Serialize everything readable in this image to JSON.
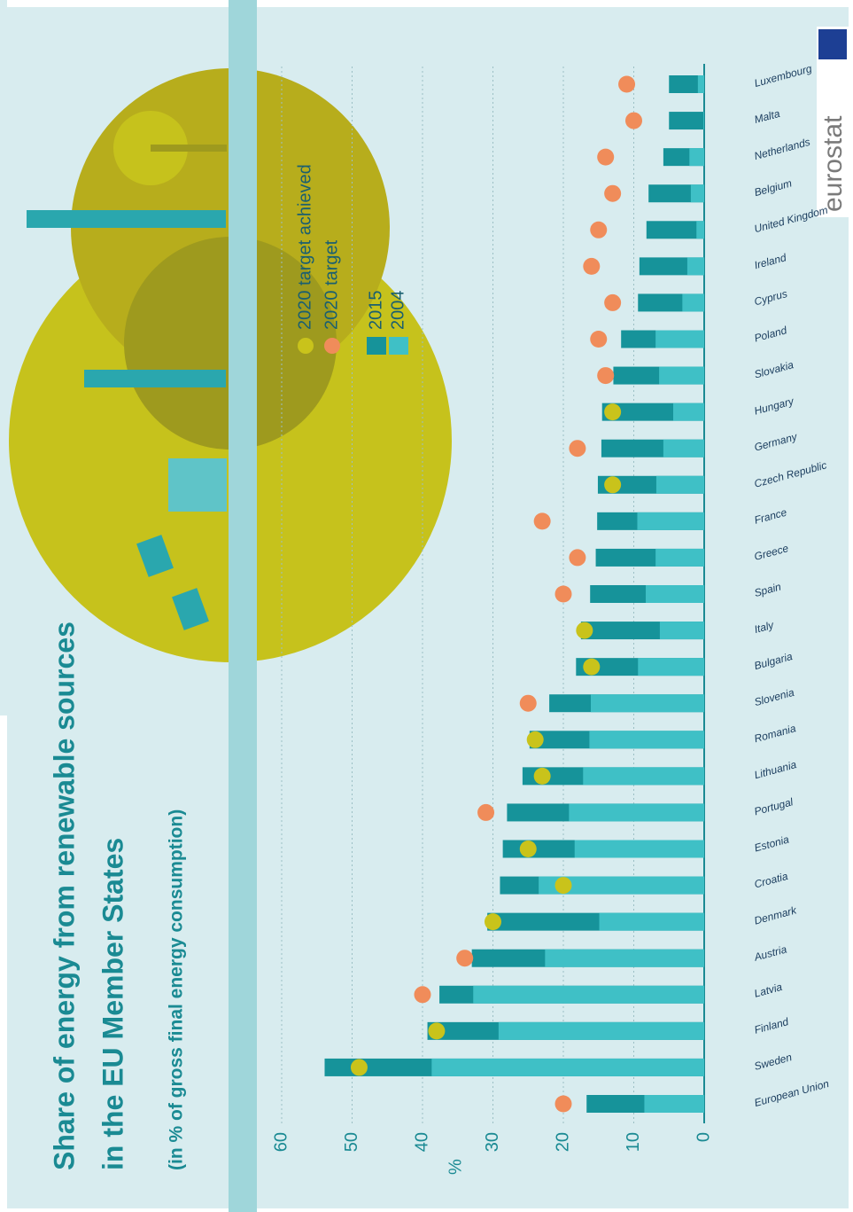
{
  "title": "Share of energy from renewable sources",
  "title_line2": "in the EU Member States",
  "subtitle": "(in % of gross final energy consumption)",
  "source": "eurostat",
  "chart_data": {
    "type": "bar",
    "y_label": "%",
    "categories": [
      "European Union",
      "Sweden",
      "Finland",
      "Latvia",
      "Austria",
      "Denmark",
      "Croatia",
      "Estonia",
      "Portugal",
      "Lithuania",
      "Romania",
      "Slovenia",
      "Bulgaria",
      "Italy",
      "Spain",
      "Greece",
      "France",
      "Czech Republic",
      "Germany",
      "Hungary",
      "Slovakia",
      "Poland",
      "Cyprus",
      "Ireland",
      "United Kingdom",
      "Belgium",
      "Netherlands",
      "Malta",
      "Luxembourg"
    ],
    "series": [
      {
        "name": "2015",
        "type": "bar",
        "color": "#16939a",
        "values": [
          16.7,
          53.9,
          39.3,
          37.6,
          33.0,
          30.8,
          29.0,
          28.6,
          28.0,
          25.8,
          24.8,
          22.0,
          18.2,
          17.5,
          16.2,
          15.4,
          15.2,
          15.1,
          14.6,
          14.5,
          12.9,
          11.8,
          9.4,
          9.2,
          8.2,
          7.9,
          5.8,
          5.0,
          5.0
        ]
      },
      {
        "name": "2004",
        "type": "bar",
        "color": "#3fc0c6",
        "values": [
          8.5,
          38.7,
          29.2,
          32.8,
          22.6,
          14.9,
          23.5,
          18.4,
          19.2,
          17.2,
          16.3,
          16.1,
          9.4,
          6.3,
          8.3,
          6.9,
          9.5,
          6.8,
          5.8,
          4.4,
          6.4,
          6.9,
          3.1,
          2.4,
          1.1,
          1.9,
          2.1,
          0.1,
          0.9
        ]
      },
      {
        "name": "2020 target achieved",
        "type": "scatter",
        "color": "#c9c31b",
        "values": [
          null,
          49,
          38,
          null,
          null,
          30,
          20,
          25,
          null,
          23,
          24,
          null,
          16,
          17,
          null,
          null,
          null,
          13,
          null,
          13,
          null,
          null,
          null,
          null,
          null,
          null,
          null,
          null,
          null
        ]
      },
      {
        "name": "2020 target",
        "type": "scatter",
        "color": "#f08c5a",
        "values": [
          20,
          null,
          null,
          40,
          34,
          null,
          null,
          null,
          31,
          null,
          null,
          25,
          null,
          null,
          20,
          18,
          23,
          null,
          18,
          null,
          14,
          15,
          13,
          16,
          15,
          13,
          14,
          10,
          11
        ]
      }
    ],
    "ylim": [
      0,
      60
    ],
    "yticks": [
      0,
      10,
      20,
      30,
      40,
      50,
      60
    ],
    "grid": true
  }
}
